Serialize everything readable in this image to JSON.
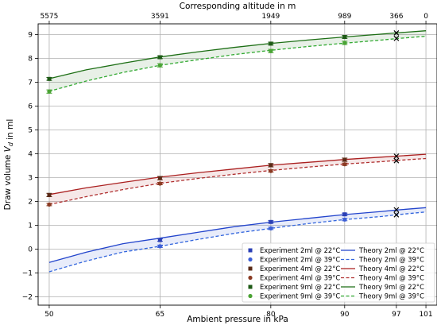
{
  "chart_data": {
    "type": "line",
    "xlabel": "Ambient pressure in kPa",
    "ylabel": "Draw volume V_d in ml",
    "top_xlabel": "Corresponding altitude in m",
    "xlim": [
      48.5,
      102.5
    ],
    "ylim": [
      -2.35,
      9.45
    ],
    "x_ticks": [
      50,
      65,
      80,
      90,
      97,
      101
    ],
    "x_tick_labels": [
      "50",
      "65",
      "80",
      "90",
      "97",
      "101"
    ],
    "y_ticks": [
      -2,
      -1,
      0,
      1,
      2,
      3,
      4,
      5,
      6,
      7,
      8,
      9
    ],
    "y_tick_labels": [
      "−2",
      "−1",
      "0",
      "1",
      "2",
      "3",
      "4",
      "5",
      "6",
      "7",
      "8",
      "9"
    ],
    "top_x_ticks": [
      50,
      65,
      80,
      90,
      97,
      101
    ],
    "top_x_tick_labels": [
      "5575",
      "3591",
      "1949",
      "989",
      "366",
      "0"
    ],
    "grid": true,
    "legend_placement": "lower-right",
    "series": [
      {
        "name": "Experiment 2ml @ 22°C",
        "kind": "experiment",
        "color": "#2a3fb5",
        "marker": "square",
        "x": [
          65,
          80,
          90
        ],
        "y": [
          0.38,
          1.14,
          1.46
        ],
        "yerr": [
          0.05,
          0.05,
          0.05
        ]
      },
      {
        "name": "Experiment 2ml @ 39°C",
        "kind": "experiment",
        "color": "#3d5fd6",
        "marker": "circle",
        "x": [
          65,
          80,
          90
        ],
        "y": [
          0.12,
          0.87,
          1.24
        ],
        "yerr": [
          0.05,
          0.05,
          0.05
        ]
      },
      {
        "name": "Experiment 4ml @ 22°C",
        "kind": "experiment",
        "color": "#5a2a16",
        "marker": "square",
        "x": [
          50,
          65,
          80,
          90
        ],
        "y": [
          2.27,
          2.98,
          3.52,
          3.75
        ],
        "yerr": [
          0.07,
          0.07,
          0.07,
          0.07
        ]
      },
      {
        "name": "Experiment 4ml @ 39°C",
        "kind": "experiment",
        "color": "#8a3a22",
        "marker": "circle",
        "x": [
          50,
          65,
          80,
          90
        ],
        "y": [
          1.87,
          2.75,
          3.28,
          3.56
        ],
        "yerr": [
          0.05,
          0.05,
          0.05,
          0.05
        ]
      },
      {
        "name": "Experiment 9ml @ 22°C",
        "kind": "experiment",
        "color": "#1e5a16",
        "marker": "square",
        "x": [
          50,
          65,
          80,
          90
        ],
        "y": [
          7.14,
          8.05,
          8.62,
          8.9
        ],
        "yerr": [
          0.06,
          0.06,
          0.06,
          0.06
        ]
      },
      {
        "name": "Experiment 9ml @ 39°C",
        "kind": "experiment",
        "color": "#4aa334",
        "marker": "circle",
        "x": [
          50,
          65,
          80,
          90
        ],
        "y": [
          6.61,
          7.71,
          8.31,
          8.65
        ],
        "yerr": [
          0.07,
          0.07,
          0.07,
          0.07
        ]
      },
      {
        "name": "Theory 2ml @ 22°C",
        "kind": "theory",
        "color": "#2244cc",
        "dash": false,
        "x": [
          50,
          55,
          60,
          65,
          70,
          75,
          80,
          85,
          90,
          95,
          97,
          101
        ],
        "y": [
          -0.56,
          -0.13,
          0.23,
          0.46,
          0.7,
          0.94,
          1.13,
          1.29,
          1.45,
          1.58,
          1.64,
          1.74
        ]
      },
      {
        "name": "Theory 2ml @ 39°C",
        "kind": "theory",
        "color": "#3366dd",
        "dash": true,
        "x": [
          50,
          55,
          60,
          65,
          70,
          75,
          80,
          85,
          90,
          95,
          97,
          101
        ],
        "y": [
          -0.95,
          -0.5,
          -0.12,
          0.12,
          0.4,
          0.66,
          0.87,
          1.07,
          1.24,
          1.37,
          1.44,
          1.56
        ]
      },
      {
        "name": "Theory 4ml @ 22°C",
        "kind": "theory",
        "color": "#aa1f1f",
        "dash": false,
        "x": [
          50,
          55,
          60,
          65,
          70,
          75,
          80,
          85,
          90,
          95,
          97,
          101
        ],
        "y": [
          2.29,
          2.57,
          2.8,
          3.02,
          3.2,
          3.36,
          3.52,
          3.64,
          3.76,
          3.86,
          3.9,
          3.98
        ]
      },
      {
        "name": "Theory 4ml @ 39°C",
        "kind": "theory",
        "color": "#b03030",
        "dash": true,
        "x": [
          50,
          55,
          60,
          65,
          70,
          75,
          80,
          85,
          90,
          95,
          97,
          101
        ],
        "y": [
          1.87,
          2.2,
          2.5,
          2.76,
          2.96,
          3.14,
          3.3,
          3.44,
          3.57,
          3.67,
          3.72,
          3.8
        ]
      },
      {
        "name": "Theory 9ml @ 22°C",
        "kind": "theory",
        "color": "#1c6e14",
        "dash": false,
        "x": [
          50,
          55,
          60,
          65,
          70,
          75,
          80,
          85,
          90,
          95,
          97,
          101
        ],
        "y": [
          7.15,
          7.52,
          7.8,
          8.06,
          8.27,
          8.46,
          8.63,
          8.77,
          8.9,
          9.02,
          9.07,
          9.16
        ]
      },
      {
        "name": "Theory 9ml @ 39°C",
        "kind": "theory",
        "color": "#33aa33",
        "dash": true,
        "x": [
          50,
          55,
          60,
          65,
          70,
          75,
          80,
          85,
          90,
          95,
          97,
          101
        ],
        "y": [
          6.62,
          7.05,
          7.41,
          7.71,
          7.94,
          8.16,
          8.34,
          8.5,
          8.64,
          8.77,
          8.83,
          8.93
        ]
      }
    ],
    "extra_markers": [
      {
        "x": 97,
        "y": 1.65
      },
      {
        "x": 97,
        "y": 1.44
      },
      {
        "x": 97,
        "y": 3.9
      },
      {
        "x": 97,
        "y": 3.71
      },
      {
        "x": 97,
        "y": 9.07
      },
      {
        "x": 97,
        "y": 8.84
      }
    ]
  }
}
